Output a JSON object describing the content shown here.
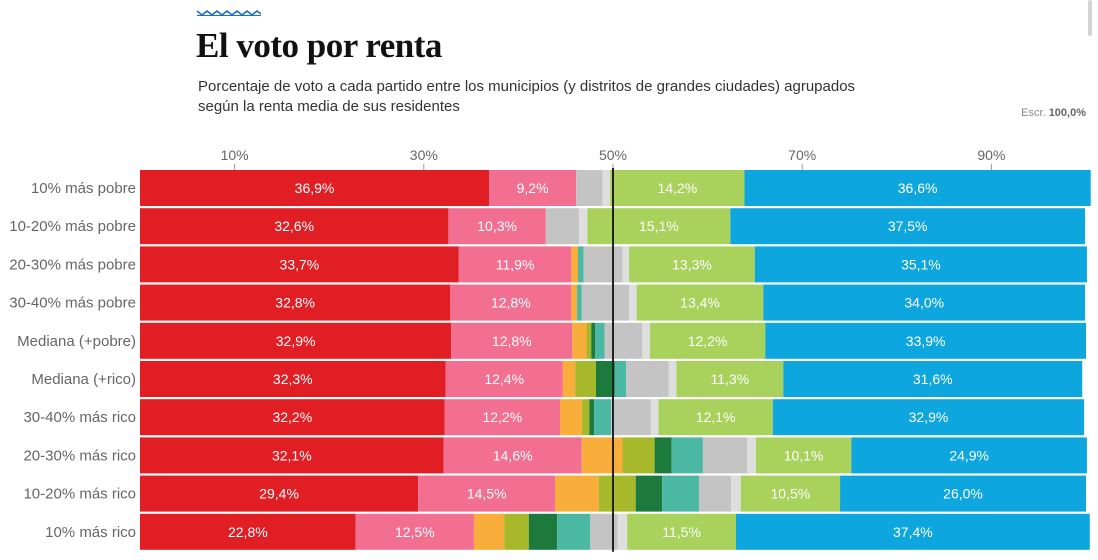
{
  "header": {
    "title": "El voto por renta",
    "subtitle": "Porcentaje de voto a cada partido entre los municipios (y distritos de grandes ciudades) agrupados según la renta media de sus residentes",
    "scale_label": "Escr.",
    "scale_value": "100,0%"
  },
  "colors": {
    "deco": "#1a6fc4",
    "psoe": "#e01e24",
    "podemos": "#f36f91",
    "orange": "#f9ae3b",
    "olive": "#a7b92a",
    "darkgreen": "#1c7a3c",
    "teal": "#4bb8a4",
    "gray": "#c4c4c4",
    "lightgray": "#dedede",
    "ltgreen": "#a9d25c",
    "blue": "#0ea6de",
    "midline": "#222222"
  },
  "chart_data": {
    "type": "bar",
    "orientation": "horizontal",
    "stacked": true,
    "xlim": [
      0,
      100
    ],
    "x_ticks": [
      "10%",
      "30%",
      "50%",
      "70%",
      "90%"
    ],
    "x_tick_values": [
      10,
      30,
      50,
      70,
      90
    ],
    "reference_line": 50,
    "categories": [
      "10% más pobre",
      "10-20% más pobre",
      "20-30% más pobre",
      "30-40% más pobre",
      "Mediana (+pobre)",
      "Mediana (+rico)",
      "30-40% más rico",
      "20-30% más rico",
      "10-20% más rico",
      "10% más rico"
    ],
    "rows": [
      {
        "segments": [
          {
            "c": "psoe",
            "v": 36.9,
            "label": "36,9%"
          },
          {
            "c": "podemos",
            "v": 9.2,
            "label": "9,2%"
          },
          {
            "c": "gray",
            "v": 2.8
          },
          {
            "c": "lightgray",
            "v": 0.8
          },
          {
            "c": "ltgreen",
            "v": 14.2,
            "label": "14,2%"
          },
          {
            "c": "blue",
            "v": 36.6,
            "label": "36,6%"
          }
        ]
      },
      {
        "segments": [
          {
            "c": "psoe",
            "v": 32.6,
            "label": "32,6%"
          },
          {
            "c": "podemos",
            "v": 10.3,
            "label": "10,3%"
          },
          {
            "c": "gray",
            "v": 3.5
          },
          {
            "c": "lightgray",
            "v": 0.9
          },
          {
            "c": "ltgreen",
            "v": 15.1,
            "label": "15,1%"
          },
          {
            "c": "blue",
            "v": 37.5,
            "label": "37,5%"
          }
        ]
      },
      {
        "segments": [
          {
            "c": "psoe",
            "v": 33.7,
            "label": "33,7%"
          },
          {
            "c": "podemos",
            "v": 11.9,
            "label": "11,9%"
          },
          {
            "c": "orange",
            "v": 0.7
          },
          {
            "c": "teal",
            "v": 0.6
          },
          {
            "c": "gray",
            "v": 4.1
          },
          {
            "c": "lightgray",
            "v": 0.7
          },
          {
            "c": "ltgreen",
            "v": 13.3,
            "label": "13,3%"
          },
          {
            "c": "blue",
            "v": 35.1,
            "label": "35,1%"
          }
        ]
      },
      {
        "segments": [
          {
            "c": "psoe",
            "v": 32.8,
            "label": "32,8%"
          },
          {
            "c": "podemos",
            "v": 12.8,
            "label": "12,8%"
          },
          {
            "c": "orange",
            "v": 0.6
          },
          {
            "c": "teal",
            "v": 0.5
          },
          {
            "c": "gray",
            "v": 5.0
          },
          {
            "c": "lightgray",
            "v": 0.8
          },
          {
            "c": "ltgreen",
            "v": 13.4,
            "label": "13,4%"
          },
          {
            "c": "blue",
            "v": 34.0,
            "label": "34,0%"
          }
        ]
      },
      {
        "segments": [
          {
            "c": "psoe",
            "v": 32.9,
            "label": "32,9%"
          },
          {
            "c": "podemos",
            "v": 12.8,
            "label": "12,8%"
          },
          {
            "c": "orange",
            "v": 1.5
          },
          {
            "c": "olive",
            "v": 0.5
          },
          {
            "c": "darkgreen",
            "v": 0.4
          },
          {
            "c": "teal",
            "v": 1.0
          },
          {
            "c": "gray",
            "v": 4.0
          },
          {
            "c": "lightgray",
            "v": 0.8
          },
          {
            "c": "ltgreen",
            "v": 12.2,
            "label": "12,2%"
          },
          {
            "c": "blue",
            "v": 33.9,
            "label": "33,9%"
          }
        ]
      },
      {
        "segments": [
          {
            "c": "psoe",
            "v": 32.3,
            "label": "32,3%"
          },
          {
            "c": "podemos",
            "v": 12.4,
            "label": "12,4%"
          },
          {
            "c": "orange",
            "v": 1.3
          },
          {
            "c": "olive",
            "v": 2.2
          },
          {
            "c": "darkgreen",
            "v": 2.0
          },
          {
            "c": "teal",
            "v": 1.2
          },
          {
            "c": "gray",
            "v": 4.5
          },
          {
            "c": "lightgray",
            "v": 0.8
          },
          {
            "c": "ltgreen",
            "v": 11.3,
            "label": "11,3%"
          },
          {
            "c": "blue",
            "v": 31.6,
            "label": "31,6%"
          }
        ]
      },
      {
        "segments": [
          {
            "c": "psoe",
            "v": 32.2,
            "label": "32,2%"
          },
          {
            "c": "podemos",
            "v": 12.2,
            "label": "12,2%"
          },
          {
            "c": "orange",
            "v": 2.3
          },
          {
            "c": "olive",
            "v": 0.8
          },
          {
            "c": "darkgreen",
            "v": 0.5
          },
          {
            "c": "teal",
            "v": 1.8
          },
          {
            "c": "gray",
            "v": 4.2
          },
          {
            "c": "lightgray",
            "v": 0.8
          },
          {
            "c": "ltgreen",
            "v": 12.1,
            "label": "12,1%"
          },
          {
            "c": "blue",
            "v": 32.9,
            "label": "32,9%"
          }
        ]
      },
      {
        "segments": [
          {
            "c": "psoe",
            "v": 32.1,
            "label": "32,1%"
          },
          {
            "c": "podemos",
            "v": 14.6,
            "label": "14,6%"
          },
          {
            "c": "orange",
            "v": 4.3
          },
          {
            "c": "olive",
            "v": 3.4
          },
          {
            "c": "darkgreen",
            "v": 1.8
          },
          {
            "c": "teal",
            "v": 3.3
          },
          {
            "c": "gray",
            "v": 4.7
          },
          {
            "c": "lightgray",
            "v": 0.9
          },
          {
            "c": "ltgreen",
            "v": 10.1,
            "label": "10,1%"
          },
          {
            "c": "blue",
            "v": 24.9,
            "label": "24,9%"
          }
        ]
      },
      {
        "segments": [
          {
            "c": "psoe",
            "v": 29.4,
            "label": "29,4%"
          },
          {
            "c": "podemos",
            "v": 14.5,
            "label": "14,5%"
          },
          {
            "c": "orange",
            "v": 4.6
          },
          {
            "c": "olive",
            "v": 3.9
          },
          {
            "c": "darkgreen",
            "v": 2.8
          },
          {
            "c": "teal",
            "v": 3.9
          },
          {
            "c": "gray",
            "v": 3.4
          },
          {
            "c": "lightgray",
            "v": 1.0
          },
          {
            "c": "ltgreen",
            "v": 10.5,
            "label": "10,5%"
          },
          {
            "c": "blue",
            "v": 26.0,
            "label": "26,0%"
          }
        ]
      },
      {
        "segments": [
          {
            "c": "psoe",
            "v": 22.8,
            "label": "22,8%"
          },
          {
            "c": "podemos",
            "v": 12.5,
            "label": "12,5%"
          },
          {
            "c": "orange",
            "v": 3.2
          },
          {
            "c": "olive",
            "v": 2.6
          },
          {
            "c": "darkgreen",
            "v": 3.0
          },
          {
            "c": "teal",
            "v": 3.5
          },
          {
            "c": "gray",
            "v": 2.9
          },
          {
            "c": "lightgray",
            "v": 1.0
          },
          {
            "c": "ltgreen",
            "v": 11.5,
            "label": "11,5%"
          },
          {
            "c": "blue",
            "v": 37.4,
            "label": "37,4%"
          }
        ]
      }
    ]
  }
}
